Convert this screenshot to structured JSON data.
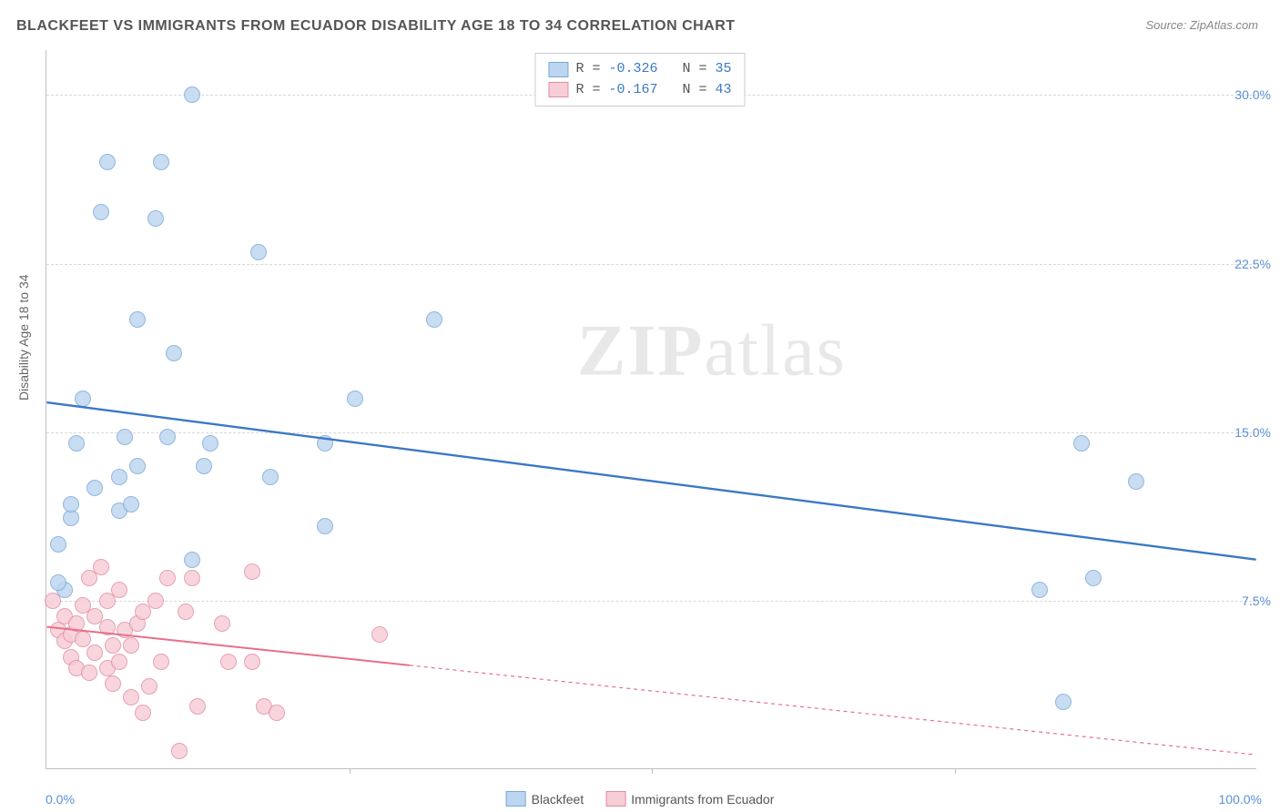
{
  "title": "BLACKFEET VS IMMIGRANTS FROM ECUADOR DISABILITY AGE 18 TO 34 CORRELATION CHART",
  "source": "Source: ZipAtlas.com",
  "watermark_zip": "ZIP",
  "watermark_atlas": "atlas",
  "ylabel": "Disability Age 18 to 34",
  "chart": {
    "type": "scatter",
    "background_color": "#ffffff",
    "grid_color": "#d8d8d8",
    "axis_color": "#bfbfbf",
    "label_color": "#5b8fd6",
    "xlim": [
      0,
      100
    ],
    "ylim": [
      0,
      32
    ],
    "yticks": [
      {
        "value": 7.5,
        "label": "7.5%"
      },
      {
        "value": 15.0,
        "label": "15.0%"
      },
      {
        "value": 22.5,
        "label": "22.5%"
      },
      {
        "value": 30.0,
        "label": "30.0%"
      }
    ],
    "xticks": [
      0,
      25,
      50,
      75
    ],
    "x_endlabels": {
      "min": "0.0%",
      "max": "100.0%"
    },
    "point_radius": 9,
    "point_stroke_width": 1.2,
    "series": [
      {
        "name": "Blackfeet",
        "fill": "#bcd5f0",
        "stroke": "#7aa8d8",
        "line_color": "#3b78c4",
        "line_width": 2.4,
        "line_dash": "none",
        "R": "-0.326",
        "N": "35",
        "trend": {
          "x1": 0,
          "y1": 16.3,
          "x2": 100,
          "y2": 9.3
        },
        "points": [
          [
            1.0,
            10.0
          ],
          [
            1.5,
            8.0
          ],
          [
            2.0,
            11.2
          ],
          [
            2.0,
            11.8
          ],
          [
            2.5,
            14.5
          ],
          [
            3.0,
            16.5
          ],
          [
            4.5,
            24.8
          ],
          [
            5.0,
            27.0
          ],
          [
            6.0,
            11.5
          ],
          [
            6.0,
            13.0
          ],
          [
            6.5,
            14.8
          ],
          [
            7.0,
            11.8
          ],
          [
            7.5,
            13.5
          ],
          [
            7.5,
            20.0
          ],
          [
            9.0,
            24.5
          ],
          [
            9.5,
            27.0
          ],
          [
            10.0,
            14.8
          ],
          [
            10.5,
            18.5
          ],
          [
            12.0,
            9.3
          ],
          [
            12.0,
            30.0
          ],
          [
            13.0,
            13.5
          ],
          [
            13.5,
            14.5
          ],
          [
            17.5,
            23.0
          ],
          [
            18.5,
            13.0
          ],
          [
            23.0,
            10.8
          ],
          [
            23.0,
            14.5
          ],
          [
            25.5,
            16.5
          ],
          [
            32.0,
            20.0
          ],
          [
            82.0,
            8.0
          ],
          [
            84.0,
            3.0
          ],
          [
            85.5,
            14.5
          ],
          [
            86.5,
            8.5
          ],
          [
            90.0,
            12.8
          ],
          [
            1.0,
            8.3
          ],
          [
            4.0,
            12.5
          ]
        ]
      },
      {
        "name": "Immigrants from Ecuador",
        "fill": "#f7cdd6",
        "stroke": "#e48ca0",
        "line_color": "#e86f8c",
        "line_width": 2.0,
        "line_dash": "4,4",
        "R": "-0.167",
        "N": "43",
        "trend": {
          "x1": 0,
          "y1": 6.3,
          "x2": 100,
          "y2": 0.6
        },
        "trend_solid_until": 30,
        "points": [
          [
            0.5,
            7.5
          ],
          [
            1.0,
            6.2
          ],
          [
            1.5,
            5.7
          ],
          [
            1.5,
            6.8
          ],
          [
            2.0,
            5.0
          ],
          [
            2.0,
            6.0
          ],
          [
            2.5,
            4.5
          ],
          [
            2.5,
            6.5
          ],
          [
            3.0,
            5.8
          ],
          [
            3.0,
            7.3
          ],
          [
            3.5,
            4.3
          ],
          [
            3.5,
            8.5
          ],
          [
            4.0,
            5.2
          ],
          [
            4.0,
            6.8
          ],
          [
            4.5,
            9.0
          ],
          [
            5.0,
            4.5
          ],
          [
            5.0,
            6.3
          ],
          [
            5.0,
            7.5
          ],
          [
            5.5,
            3.8
          ],
          [
            5.5,
            5.5
          ],
          [
            6.0,
            4.8
          ],
          [
            6.0,
            8.0
          ],
          [
            6.5,
            6.2
          ],
          [
            7.0,
            3.2
          ],
          [
            7.0,
            5.5
          ],
          [
            7.5,
            6.5
          ],
          [
            8.0,
            2.5
          ],
          [
            8.0,
            7.0
          ],
          [
            8.5,
            3.7
          ],
          [
            9.0,
            7.5
          ],
          [
            9.5,
            4.8
          ],
          [
            10.0,
            8.5
          ],
          [
            11.0,
            0.8
          ],
          [
            11.5,
            7.0
          ],
          [
            12.0,
            8.5
          ],
          [
            12.5,
            2.8
          ],
          [
            14.5,
            6.5
          ],
          [
            15.0,
            4.8
          ],
          [
            17.0,
            8.8
          ],
          [
            17.0,
            4.8
          ],
          [
            18.0,
            2.8
          ],
          [
            19.0,
            2.5
          ],
          [
            27.5,
            6.0
          ]
        ]
      }
    ]
  },
  "legend_top_text": {
    "r_prefix": "R = ",
    "n_prefix": "N = "
  }
}
